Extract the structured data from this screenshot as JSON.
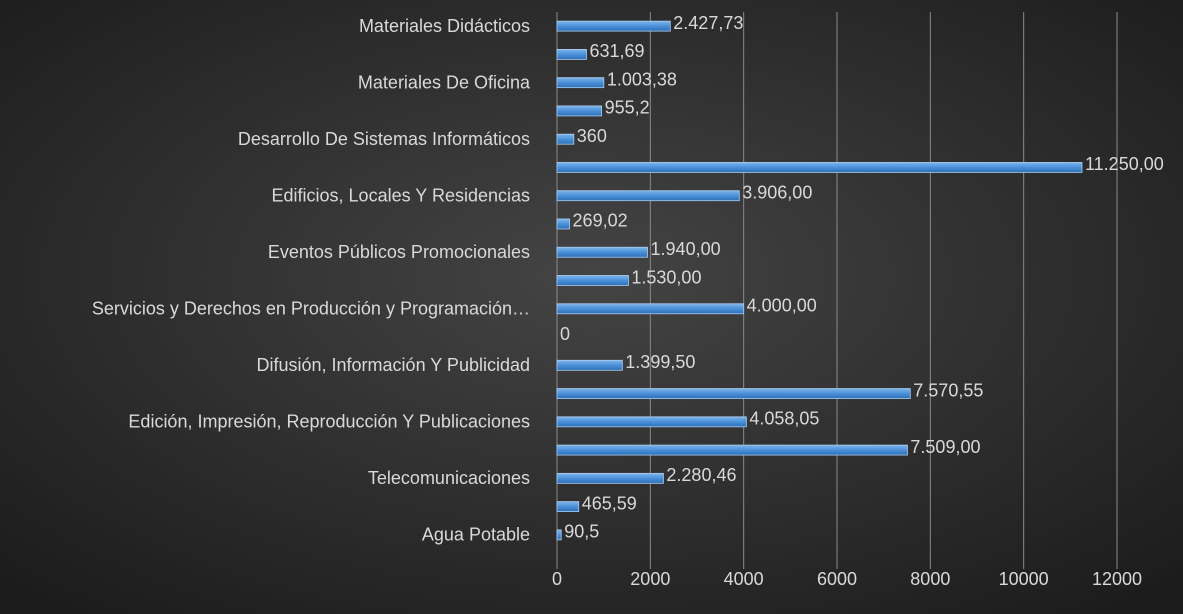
{
  "chart_data": {
    "type": "bar",
    "orientation": "horizontal",
    "categories": [
      "Materiales Didácticos",
      null,
      "Materiales De Oficina",
      null,
      "Desarrollo De Sistemas Informáticos",
      null,
      "Edificios, Locales Y Residencias",
      null,
      "Eventos Públicos Promocionales",
      null,
      "Servicios y Derechos en Producción y Programación…",
      null,
      "Difusión, Información Y Publicidad",
      null,
      "Edición, Impresión, Reproducción Y Publicaciones",
      null,
      "Telecomunicaciones",
      null,
      "Agua Potable"
    ],
    "values": [
      2427.73,
      631.69,
      1003.38,
      955.2,
      360,
      11250,
      3906,
      269.02,
      1940,
      1530,
      4000,
      0,
      1399.5,
      7570.55,
      4058.05,
      7509,
      2280.46,
      465.59,
      90.5
    ],
    "value_labels": [
      "2.427,73",
      "631,69",
      "1.003,38",
      "955,2",
      "360",
      "11.250,00",
      "3.906,00",
      "269,02",
      "1.940,00",
      "1.530,00",
      "4.000,00",
      "0",
      "1.399,50",
      "7.570,55",
      "4.058,05",
      "7.509,00",
      "2.280,46",
      "465,59",
      "90,5"
    ],
    "color": "#4a90d9",
    "xlim": [
      0,
      12000
    ],
    "xticks": [
      0,
      2000,
      4000,
      6000,
      8000,
      10000,
      12000
    ],
    "grid": true
  }
}
